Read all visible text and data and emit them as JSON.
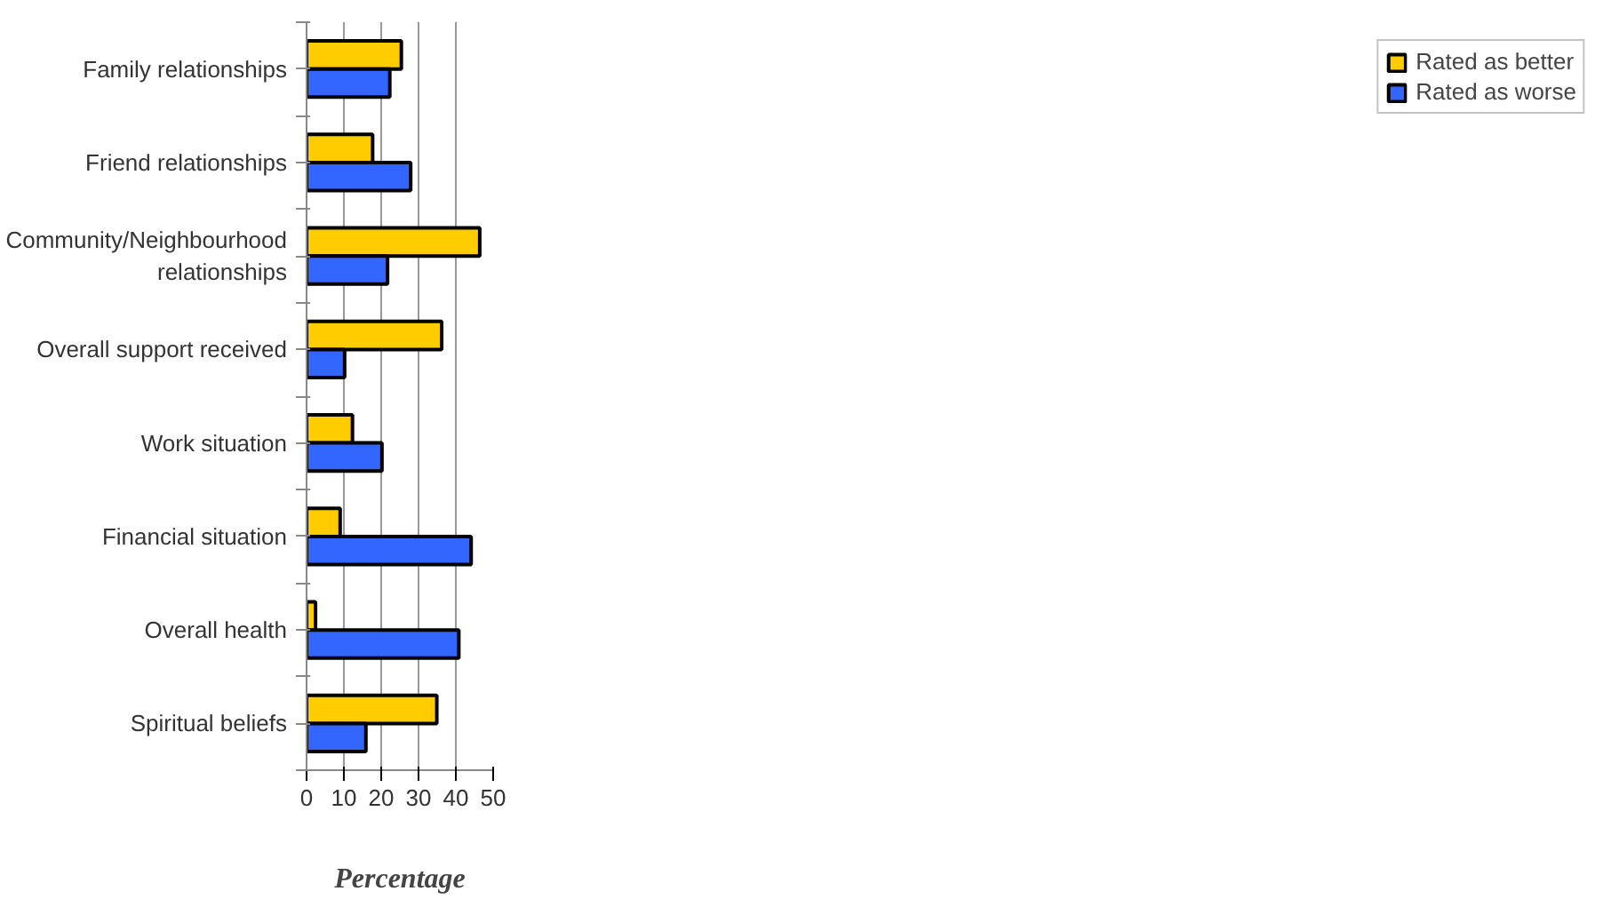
{
  "chart_data": {
    "type": "bar",
    "orientation": "horizontal",
    "xlabel": "Percentage",
    "categories": [
      "Family relationships",
      "Friend relationships",
      "Community/Neighbourhood\nrelationships",
      "Overall support received",
      "Work situation",
      "Financial situation",
      "Overall health",
      "Spiritual beliefs"
    ],
    "series": [
      {
        "name": "Rated as better",
        "color": "#ffcc00",
        "values": [
          25.4,
          17.7,
          46.4,
          36.2,
          12.3,
          9.0,
          2.4,
          34.9
        ]
      },
      {
        "name": "Rated as worse",
        "color": "#3366ff",
        "values": [
          22.3,
          27.9,
          21.7,
          10.2,
          20.2,
          44.1,
          40.8,
          15.9
        ]
      }
    ],
    "xlim": [
      0,
      50
    ],
    "xticks": [
      0,
      10,
      20,
      30,
      40,
      50
    ],
    "grid": "x",
    "legend": "right"
  }
}
